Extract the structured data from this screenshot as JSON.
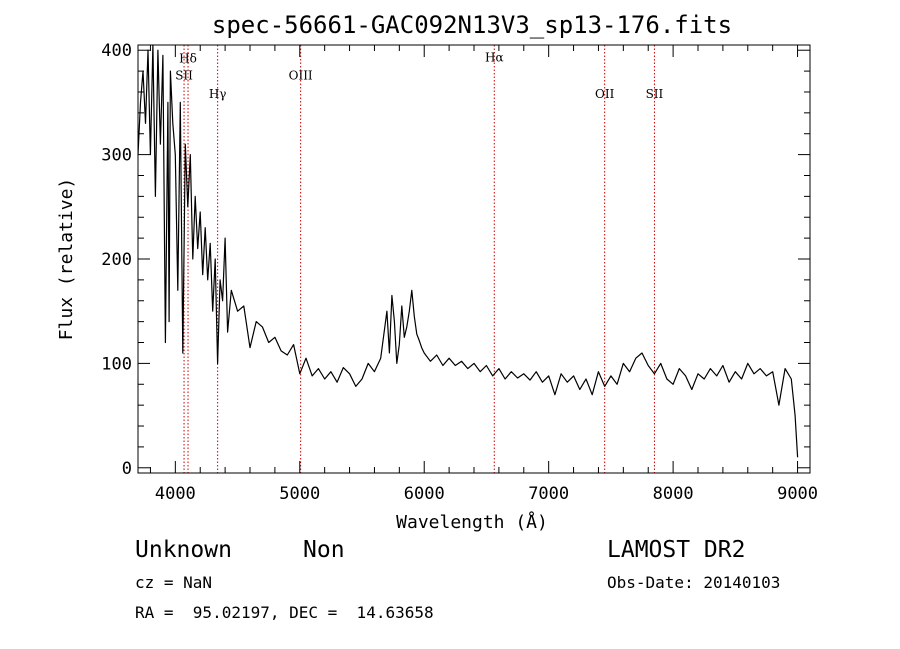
{
  "chart_data": {
    "type": "line",
    "title": "spec-56661-GAC092N13V3_sp13-176.fits",
    "xlabel": "Wavelength (Å)",
    "ylabel": "Flux (relative)",
    "xlim": [
      3700,
      9100
    ],
    "ylim": [
      -5,
      405
    ],
    "x_ticks": [
      4000,
      5000,
      6000,
      7000,
      8000,
      9000
    ],
    "y_ticks": [
      0,
      100,
      200,
      300,
      400
    ],
    "grid": false,
    "line_color": "#000000",
    "marker_color": "#cc0000",
    "spectral_lines": [
      {
        "label": "Hδ",
        "wavelength": 4102,
        "label_flux": 388
      },
      {
        "label": "SII",
        "wavelength": 4070,
        "label_flux": 372
      },
      {
        "label": "Hγ",
        "wavelength": 4340,
        "label_flux": 354
      },
      {
        "label": "OIII",
        "wavelength": 5007,
        "label_flux": 372
      },
      {
        "label": "Hα",
        "wavelength": 6563,
        "label_flux": 389
      },
      {
        "label": "OII",
        "wavelength": 7450,
        "label_flux": 354
      },
      {
        "label": "SII",
        "wavelength": 7850,
        "label_flux": 354
      }
    ],
    "series": [
      {
        "x": [
          3700,
          3720,
          3740,
          3760,
          3780,
          3800,
          3820,
          3840,
          3860,
          3880,
          3900,
          3920,
          3940,
          3950,
          3960,
          3980,
          4000,
          4020,
          4040,
          4060,
          4080,
          4100,
          4120,
          4140,
          4160,
          4180,
          4200,
          4220,
          4240,
          4260,
          4280,
          4300,
          4320,
          4340,
          4360,
          4380,
          4400,
          4420,
          4450,
          4500,
          4550,
          4600,
          4650,
          4700,
          4750,
          4800,
          4850,
          4900,
          4950,
          5000,
          5050,
          5100,
          5150,
          5200,
          5250,
          5300,
          5350,
          5400,
          5450,
          5500,
          5550,
          5600,
          5650,
          5700,
          5720,
          5740,
          5760,
          5780,
          5800,
          5820,
          5840,
          5860,
          5880,
          5900,
          5920,
          5940,
          5960,
          5980,
          6000,
          6050,
          6100,
          6150,
          6200,
          6250,
          6300,
          6350,
          6400,
          6450,
          6500,
          6550,
          6600,
          6650,
          6700,
          6750,
          6800,
          6850,
          6900,
          6950,
          7000,
          7050,
          7100,
          7150,
          7200,
          7250,
          7300,
          7350,
          7400,
          7450,
          7500,
          7550,
          7600,
          7650,
          7700,
          7750,
          7800,
          7850,
          7900,
          7950,
          8000,
          8050,
          8100,
          8150,
          8200,
          8250,
          8300,
          8350,
          8400,
          8450,
          8500,
          8550,
          8600,
          8650,
          8700,
          8750,
          8800,
          8850,
          8900,
          8950,
          8980,
          9000
        ],
        "y": [
          300,
          350,
          380,
          330,
          400,
          300,
          405,
          260,
          400,
          310,
          395,
          120,
          350,
          140,
          380,
          330,
          300,
          170,
          350,
          110,
          310,
          250,
          300,
          200,
          260,
          210,
          245,
          185,
          230,
          180,
          215,
          150,
          200,
          100,
          180,
          160,
          220,
          130,
          170,
          150,
          155,
          115,
          140,
          135,
          120,
          125,
          112,
          108,
          118,
          90,
          105,
          88,
          95,
          85,
          92,
          82,
          96,
          90,
          78,
          85,
          100,
          92,
          105,
          150,
          110,
          165,
          140,
          100,
          118,
          155,
          125,
          135,
          150,
          170,
          145,
          128,
          122,
          115,
          110,
          102,
          108,
          98,
          105,
          98,
          102,
          95,
          100,
          92,
          98,
          88,
          95,
          85,
          92,
          86,
          90,
          84,
          92,
          82,
          88,
          70,
          90,
          82,
          88,
          75,
          85,
          70,
          92,
          78,
          88,
          80,
          100,
          92,
          105,
          110,
          98,
          90,
          100,
          85,
          80,
          95,
          88,
          75,
          90,
          85,
          95,
          88,
          98,
          82,
          92,
          85,
          100,
          90,
          95,
          88,
          92,
          60,
          95,
          85,
          50,
          10
        ]
      }
    ]
  },
  "info": {
    "class_label": "Unknown",
    "subclass_label": "Non",
    "survey": "LAMOST DR2",
    "cz": "cz = NaN",
    "obs_date": "Obs-Date: 20140103",
    "coords": "RA =  95.02197, DEC =  14.63658"
  }
}
